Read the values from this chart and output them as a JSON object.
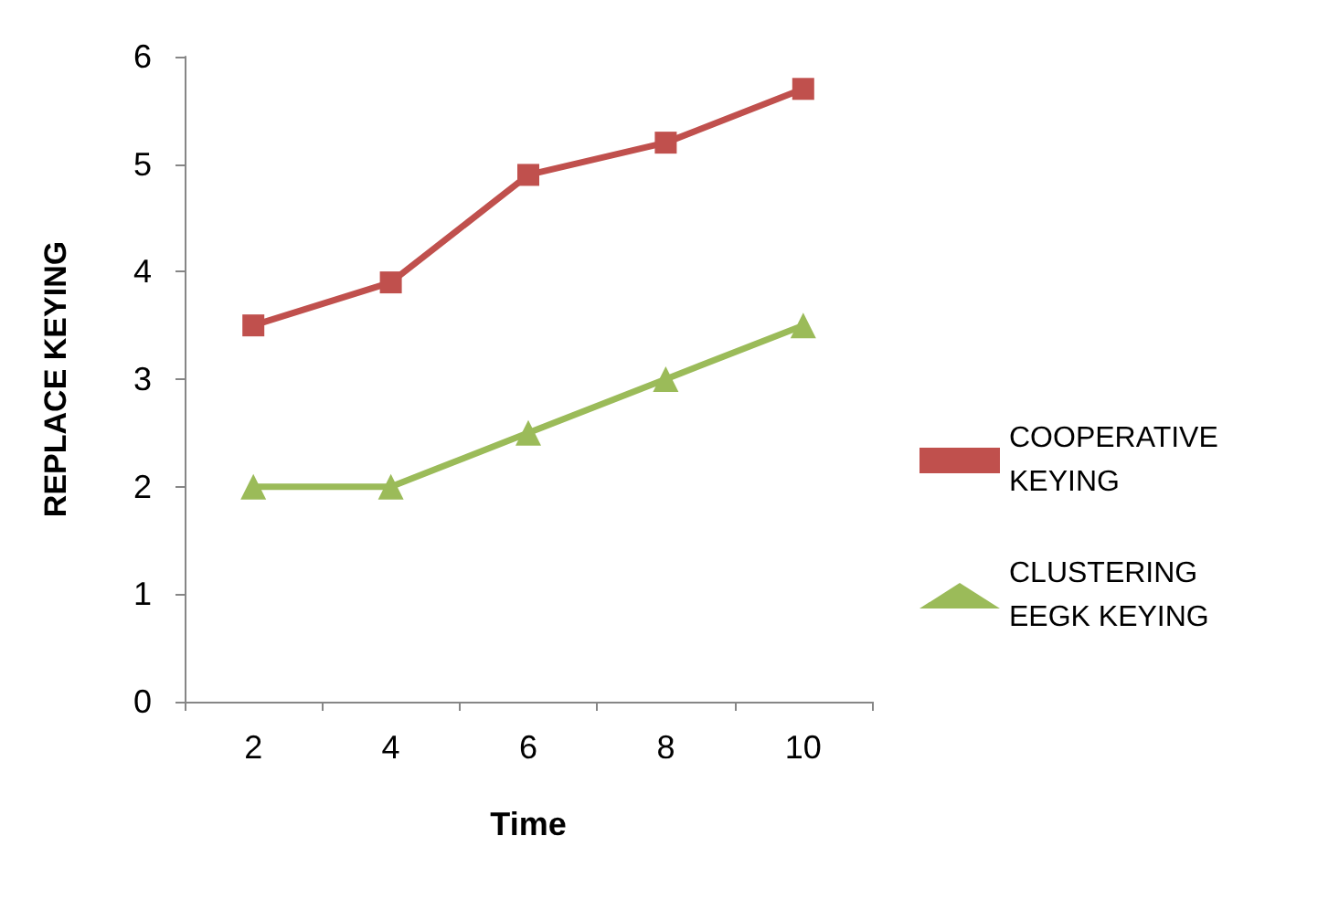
{
  "chart_data": {
    "type": "line",
    "xlabel": "Time",
    "ylabel": "REPLACE KEYING",
    "categories": [
      "2",
      "4",
      "6",
      "8",
      "10"
    ],
    "series": [
      {
        "name": "COOPERATIVE KEYING",
        "color": "#c0504d",
        "marker": "square",
        "values": [
          3.5,
          3.9,
          4.9,
          5.2,
          5.7
        ]
      },
      {
        "name": "CLUSTERING EEGK KEYING",
        "color": "#9bbb59",
        "marker": "triangle",
        "values": [
          2,
          2,
          2.5,
          3,
          3.5
        ]
      }
    ],
    "ylim": [
      0,
      6
    ],
    "yticks": [
      0,
      1,
      2,
      3,
      4,
      5,
      6
    ],
    "grid": false,
    "legend": "right",
    "line_style": "solid"
  }
}
